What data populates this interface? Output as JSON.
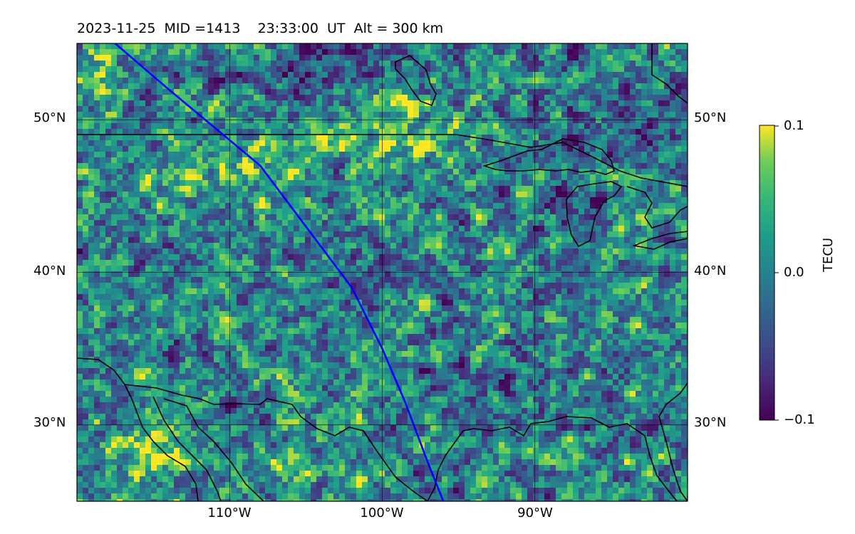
{
  "title": "2023-11-25  MID =1413    23:33:00  UT  Alt = 300 km",
  "map": {
    "lon_range": [
      -120,
      -80
    ],
    "lat_range": [
      25,
      55
    ],
    "grid_lons": [
      -110,
      -100,
      -90
    ],
    "grid_lats": [
      30,
      40,
      50
    ],
    "lat_tick_labels": [
      "50°N",
      "40°N",
      "30°N"
    ],
    "lon_tick_labels": [
      "110°W",
      "100°W",
      "90°W"
    ],
    "track_color": "#0000ff",
    "track": [
      [
        -117.5,
        55
      ],
      [
        -114,
        52
      ],
      [
        -111,
        49.5
      ],
      [
        -108,
        47
      ],
      [
        -105,
        43
      ],
      [
        -102,
        39
      ],
      [
        -100,
        35
      ],
      [
        -98.5,
        31.5
      ],
      [
        -97,
        27.5
      ],
      [
        -96,
        25
      ]
    ]
  },
  "colorbar": {
    "label": "TECU",
    "min": -0.1,
    "max": 0.1,
    "tick_labels": [
      "0.1",
      "0.0",
      "−0.1"
    ],
    "colormap": "viridis"
  }
}
